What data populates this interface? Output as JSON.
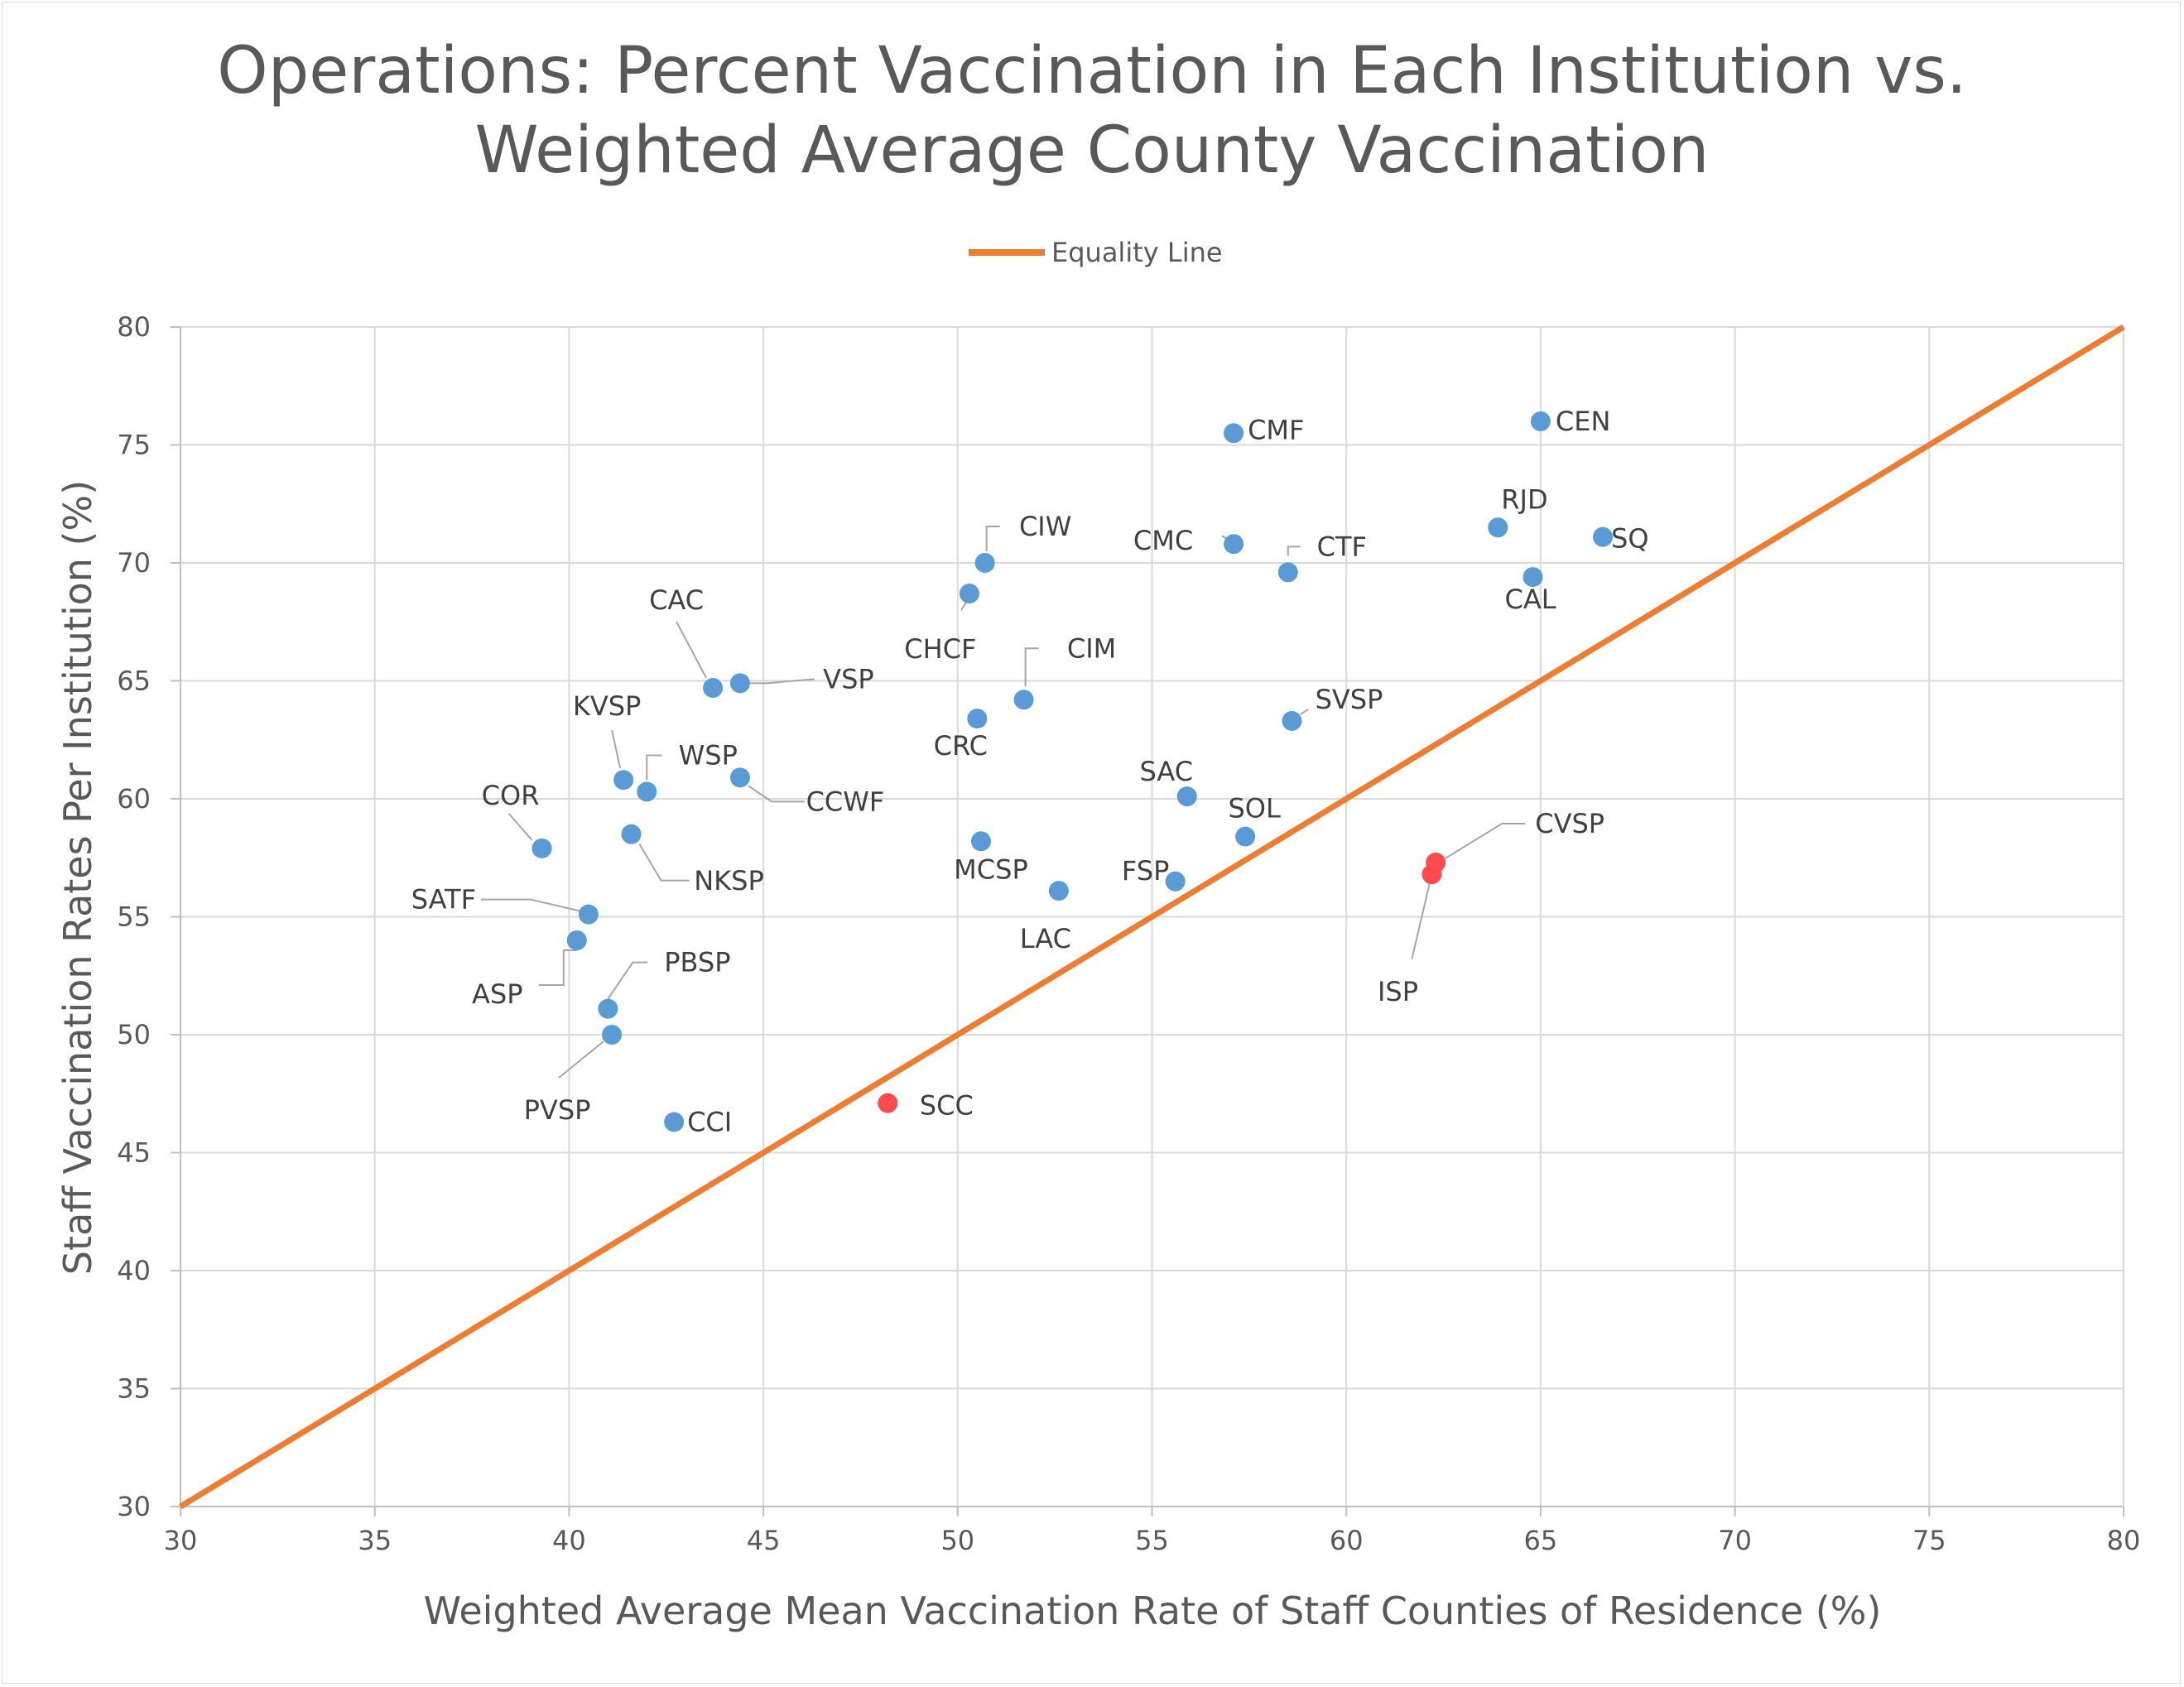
{
  "chart_data": {
    "type": "scatter",
    "title_lines": [
      "Operations: Percent Vaccination in Each Institution vs.",
      "Weighted Average County Vaccination"
    ],
    "xlabel": "Weighted Average Mean Vaccination Rate of Staff Counties of Residence (%)",
    "ylabel": "Staff Vaccination Rates Per Institution (%)",
    "xlim": [
      30,
      80
    ],
    "ylim": [
      30,
      80
    ],
    "x_ticks": [
      30,
      35,
      40,
      45,
      50,
      55,
      60,
      65,
      70,
      75,
      80
    ],
    "y_ticks": [
      30,
      35,
      40,
      45,
      50,
      55,
      60,
      65,
      70,
      75,
      80
    ],
    "grid": true,
    "legend": {
      "placement": "top-center",
      "entries": [
        "Equality Line"
      ]
    },
    "colors": {
      "point": "#5b9bd5",
      "highlight": "#ff4b4b",
      "line": "#ed7d31"
    },
    "equality_line": {
      "name": "Equality Line",
      "x": [
        30,
        80
      ],
      "y": [
        30,
        80
      ]
    },
    "points": [
      {
        "label": "CMF",
        "x": 57.1,
        "y": 75.5,
        "highlight": false
      },
      {
        "label": "CEN",
        "x": 65.0,
        "y": 76.0,
        "highlight": false
      },
      {
        "label": "RJD",
        "x": 63.9,
        "y": 71.5,
        "highlight": false
      },
      {
        "label": "SQ",
        "x": 66.6,
        "y": 71.1,
        "highlight": false
      },
      {
        "label": "CAL",
        "x": 64.8,
        "y": 69.4,
        "highlight": false
      },
      {
        "label": "CMC",
        "x": 57.1,
        "y": 70.8,
        "highlight": false
      },
      {
        "label": "CTF",
        "x": 58.5,
        "y": 69.6,
        "highlight": false
      },
      {
        "label": "CIW",
        "x": 50.7,
        "y": 70.0,
        "highlight": false
      },
      {
        "label": "CHCF",
        "x": 50.3,
        "y": 68.7,
        "highlight": false
      },
      {
        "label": "CIM",
        "x": 51.7,
        "y": 64.2,
        "highlight": false
      },
      {
        "label": "CRC",
        "x": 50.5,
        "y": 63.4,
        "highlight": false
      },
      {
        "label": "CAC",
        "x": 43.7,
        "y": 64.7,
        "highlight": false
      },
      {
        "label": "VSP",
        "x": 44.4,
        "y": 64.9,
        "highlight": false
      },
      {
        "label": "SVSP",
        "x": 58.6,
        "y": 63.3,
        "highlight": false
      },
      {
        "label": "KVSP",
        "x": 41.4,
        "y": 60.8,
        "highlight": false
      },
      {
        "label": "WSP",
        "x": 42.0,
        "y": 60.3,
        "highlight": false
      },
      {
        "label": "CCWF",
        "x": 44.4,
        "y": 60.9,
        "highlight": false
      },
      {
        "label": "SAC",
        "x": 55.9,
        "y": 60.1,
        "highlight": false
      },
      {
        "label": "SOL",
        "x": 57.4,
        "y": 58.4,
        "highlight": false
      },
      {
        "label": "COR",
        "x": 39.3,
        "y": 57.9,
        "highlight": false
      },
      {
        "label": "NKSP",
        "x": 41.6,
        "y": 58.5,
        "highlight": false
      },
      {
        "label": "MCSP",
        "x": 50.6,
        "y": 58.2,
        "highlight": false
      },
      {
        "label": "FSP",
        "x": 55.6,
        "y": 56.5,
        "highlight": false
      },
      {
        "label": "LAC",
        "x": 52.6,
        "y": 56.1,
        "highlight": false
      },
      {
        "label": "CVSP",
        "x": 62.3,
        "y": 57.3,
        "highlight": true
      },
      {
        "label": "ISP",
        "x": 62.2,
        "y": 56.8,
        "highlight": true
      },
      {
        "label": "SATF",
        "x": 40.5,
        "y": 55.1,
        "highlight": false
      },
      {
        "label": "ASP",
        "x": 40.2,
        "y": 54.0,
        "highlight": false
      },
      {
        "label": "PBSP",
        "x": 41.0,
        "y": 51.1,
        "highlight": false
      },
      {
        "label": "PVSP",
        "x": 41.1,
        "y": 50.0,
        "highlight": false
      },
      {
        "label": "CCI",
        "x": 42.7,
        "y": 46.3,
        "highlight": false
      },
      {
        "label": "SCC",
        "x": 48.2,
        "y": 47.1,
        "highlight": true
      }
    ]
  }
}
